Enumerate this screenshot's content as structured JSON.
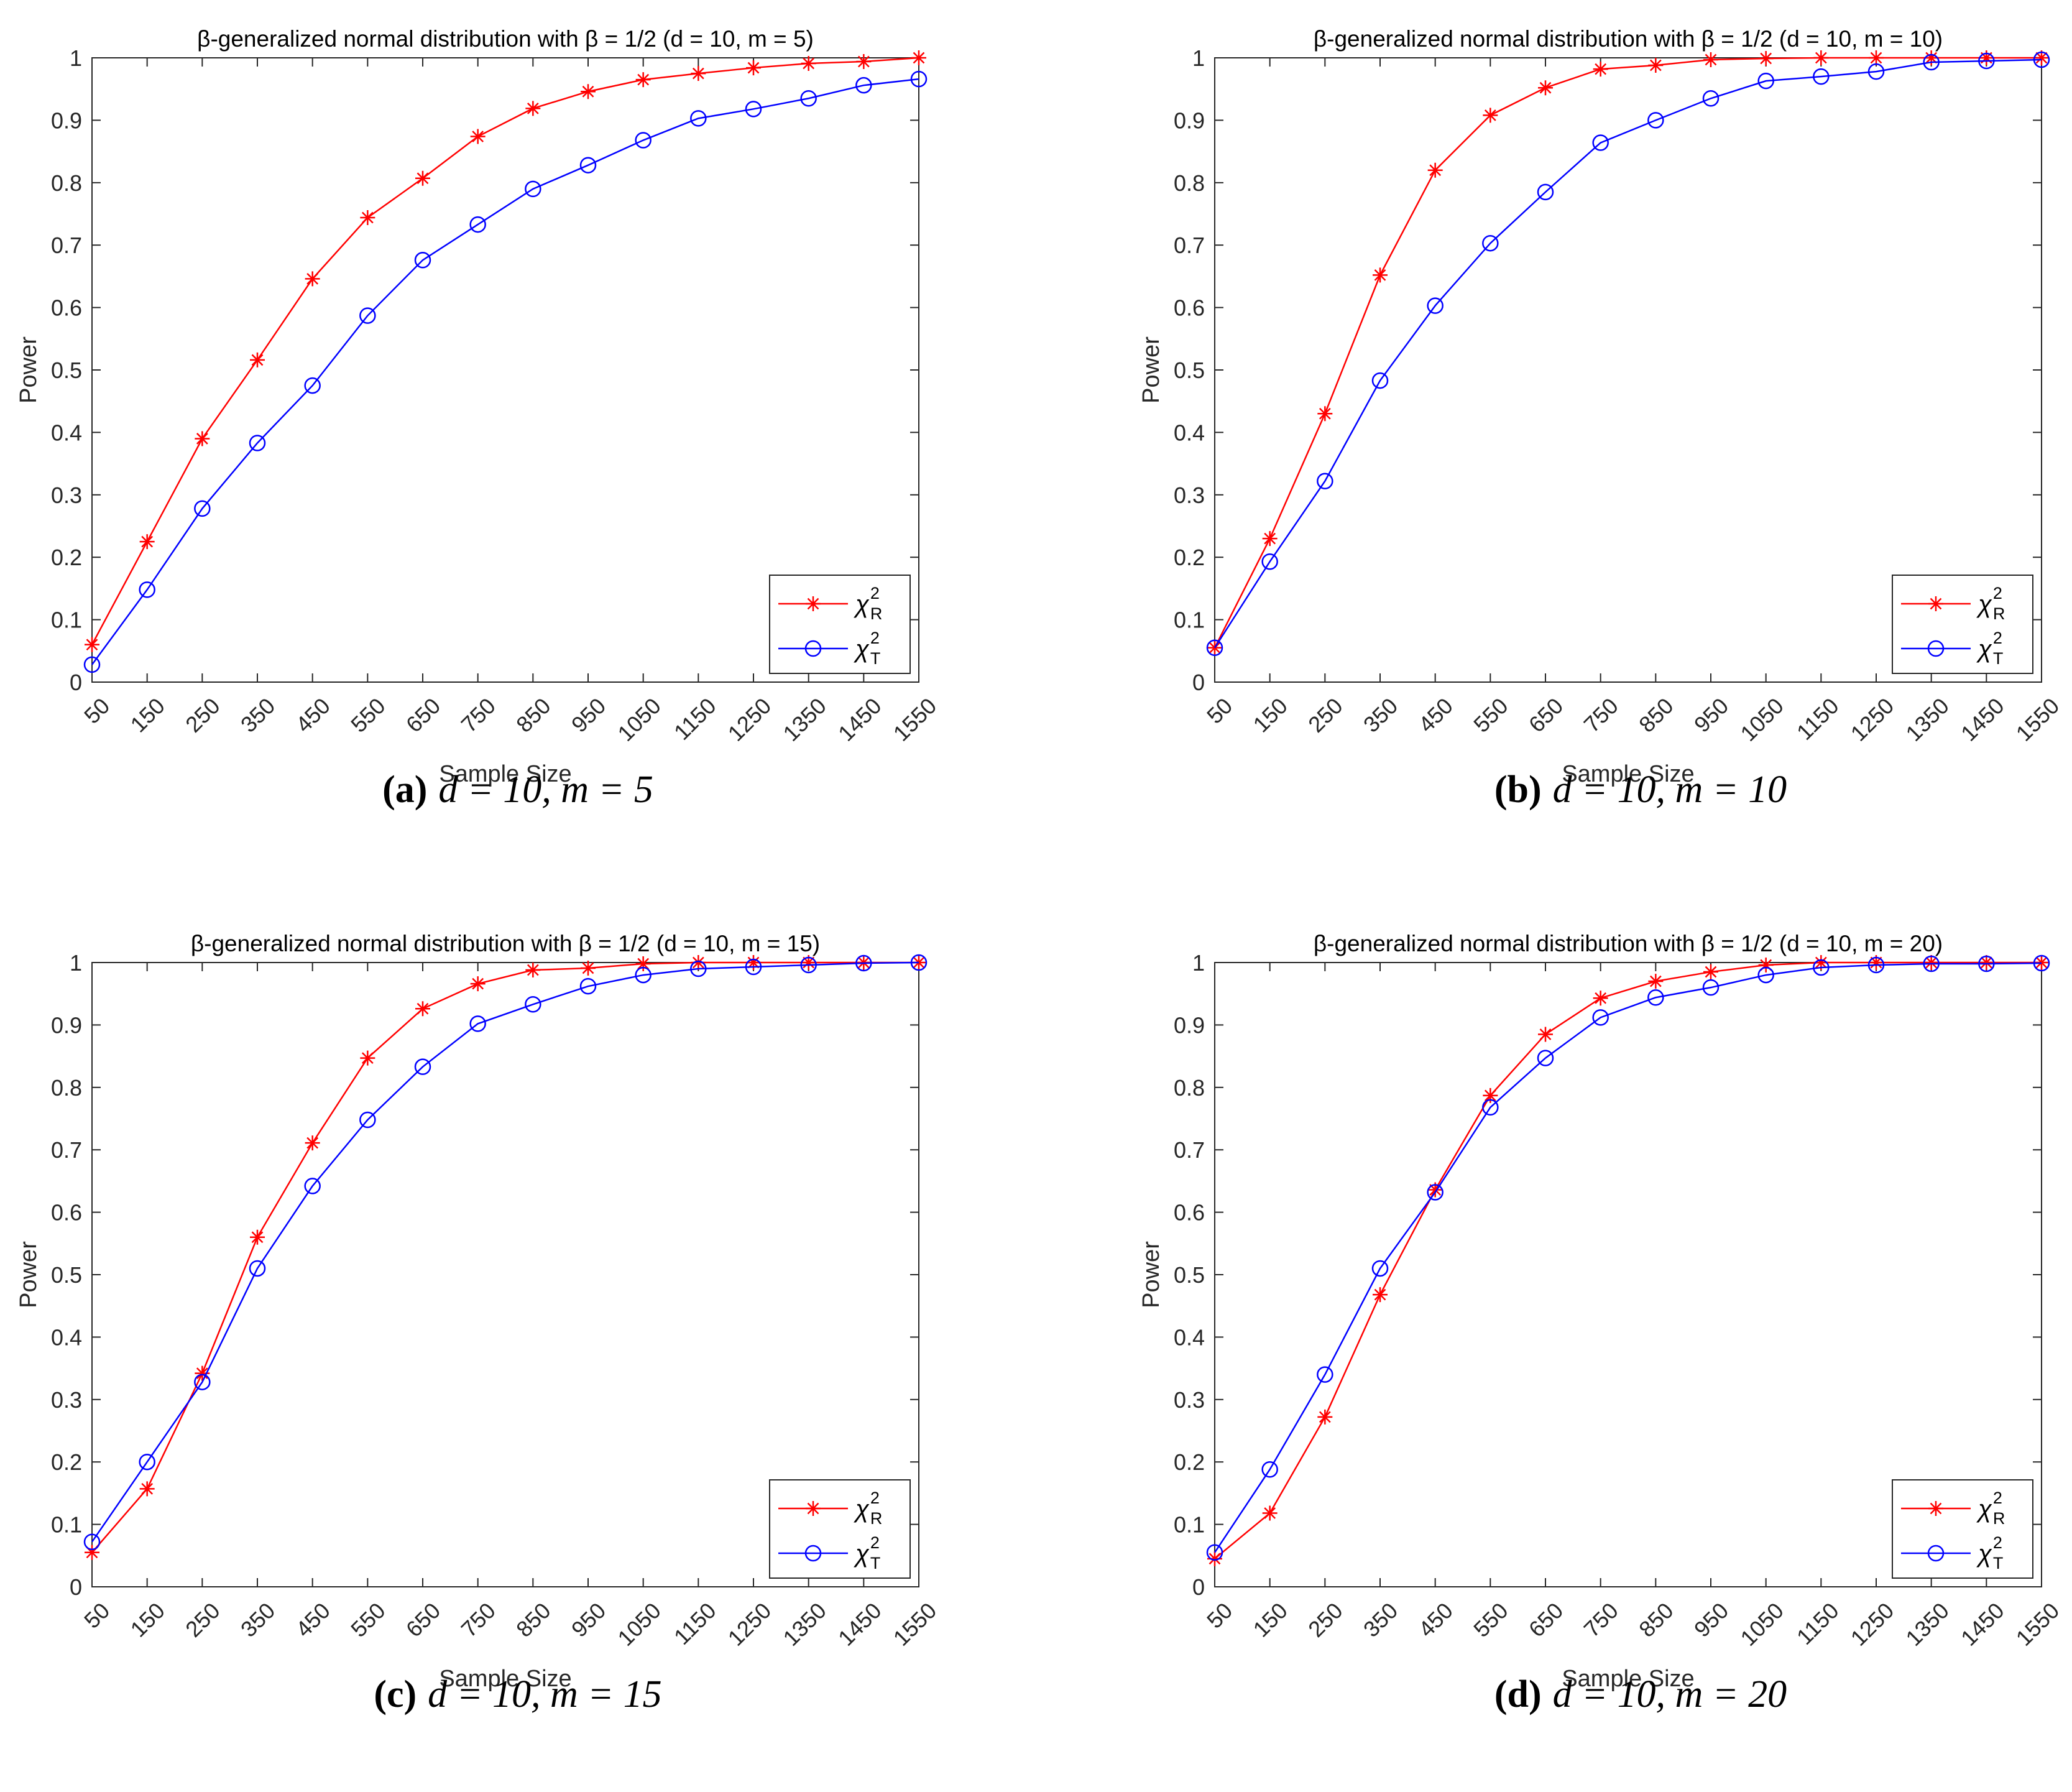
{
  "figure": {
    "panels": [
      {
        "id": "a",
        "caption_label": "(a)",
        "caption_text": "d = 10, m = 5",
        "chart_data": {
          "type": "line",
          "title": "β-generalized normal distribution with β = 1/2 (d = 10, m = 5)",
          "xlabel": "Sample Size",
          "ylabel": "Power",
          "x": [
            50,
            150,
            250,
            350,
            450,
            550,
            650,
            750,
            850,
            950,
            1050,
            1150,
            1250,
            1350,
            1450,
            1550
          ],
          "xticks": [
            "50",
            "150",
            "250",
            "350",
            "450",
            "550",
            "650",
            "750",
            "850",
            "950",
            "1050",
            "1150",
            "1250",
            "1350",
            "1450",
            "1550"
          ],
          "yticks": [
            "0",
            "0.1",
            "0.2",
            "0.3",
            "0.4",
            "0.5",
            "0.6",
            "0.7",
            "0.8",
            "0.9",
            "1"
          ],
          "xlim": [
            50,
            1550
          ],
          "ylim": [
            0,
            1
          ],
          "grid": false,
          "legend_position": "bottom-right",
          "series": [
            {
              "name": "χ²_R",
              "label_main": "χ",
              "label_sup": "2",
              "label_sub": "R",
              "color": "#ff0000",
              "marker": "asterisk",
              "values": [
                0.06,
                0.225,
                0.39,
                0.516,
                0.646,
                0.744,
                0.807,
                0.874,
                0.919,
                0.946,
                0.965,
                0.975,
                0.984,
                0.991,
                0.994,
                1.0
              ]
            },
            {
              "name": "χ²_T",
              "label_main": "χ",
              "label_sup": "2",
              "label_sub": "T",
              "color": "#0000ff",
              "marker": "circle",
              "values": [
                0.028,
                0.148,
                0.278,
                0.383,
                0.475,
                0.587,
                0.676,
                0.733,
                0.79,
                0.828,
                0.868,
                0.903,
                0.918,
                0.935,
                0.956,
                0.966
              ]
            }
          ]
        }
      },
      {
        "id": "b",
        "caption_label": "(b)",
        "caption_text": "d = 10, m = 10",
        "chart_data": {
          "type": "line",
          "title": "β-generalized normal distribution with β = 1/2 (d = 10, m = 10)",
          "xlabel": "Sample Size",
          "ylabel": "Power",
          "x": [
            50,
            150,
            250,
            350,
            450,
            550,
            650,
            750,
            850,
            950,
            1050,
            1150,
            1250,
            1350,
            1450,
            1550
          ],
          "xticks": [
            "50",
            "150",
            "250",
            "350",
            "450",
            "550",
            "650",
            "750",
            "850",
            "950",
            "1050",
            "1150",
            "1250",
            "1350",
            "1450",
            "1550"
          ],
          "yticks": [
            "0",
            "0.1",
            "0.2",
            "0.3",
            "0.4",
            "0.5",
            "0.6",
            "0.7",
            "0.8",
            "0.9",
            "1"
          ],
          "xlim": [
            50,
            1550
          ],
          "ylim": [
            0,
            1
          ],
          "grid": false,
          "legend_position": "bottom-right",
          "series": [
            {
              "name": "χ²_R",
              "label_main": "χ",
              "label_sup": "2",
              "label_sub": "R",
              "color": "#ff0000",
              "marker": "asterisk",
              "values": [
                0.055,
                0.23,
                0.43,
                0.652,
                0.82,
                0.908,
                0.952,
                0.982,
                0.988,
                0.997,
                0.999,
                1.0,
                1.0,
                1.0,
                1.0,
                1.0
              ]
            },
            {
              "name": "χ²_T",
              "label_main": "χ",
              "label_sup": "2",
              "label_sub": "T",
              "color": "#0000ff",
              "marker": "circle",
              "values": [
                0.055,
                0.193,
                0.322,
                0.483,
                0.603,
                0.703,
                0.785,
                0.864,
                0.9,
                0.935,
                0.963,
                0.97,
                0.978,
                0.993,
                0.995,
                0.997
              ]
            }
          ]
        }
      },
      {
        "id": "c",
        "caption_label": "(c)",
        "caption_text": "d = 10, m = 15",
        "chart_data": {
          "type": "line",
          "title": "β-generalized normal distribution with β = 1/2 (d = 10, m = 15)",
          "xlabel": "Sample Size",
          "ylabel": "Power",
          "x": [
            50,
            150,
            250,
            350,
            450,
            550,
            650,
            750,
            850,
            950,
            1050,
            1150,
            1250,
            1350,
            1450,
            1550
          ],
          "xticks": [
            "50",
            "150",
            "250",
            "350",
            "450",
            "550",
            "650",
            "750",
            "850",
            "950",
            "1050",
            "1150",
            "1250",
            "1350",
            "1450",
            "1550"
          ],
          "yticks": [
            "0",
            "0.1",
            "0.2",
            "0.3",
            "0.4",
            "0.5",
            "0.6",
            "0.7",
            "0.8",
            "0.9",
            "1"
          ],
          "xlim": [
            50,
            1550
          ],
          "ylim": [
            0,
            1
          ],
          "grid": false,
          "legend_position": "bottom-right",
          "series": [
            {
              "name": "χ²_R",
              "label_main": "χ",
              "label_sup": "2",
              "label_sub": "R",
              "color": "#ff0000",
              "marker": "asterisk",
              "values": [
                0.055,
                0.157,
                0.342,
                0.56,
                0.711,
                0.847,
                0.926,
                0.966,
                0.988,
                0.991,
                0.998,
                1.0,
                1.0,
                1.0,
                1.0,
                1.0
              ]
            },
            {
              "name": "χ²_T",
              "label_main": "χ",
              "label_sup": "2",
              "label_sub": "T",
              "color": "#0000ff",
              "marker": "circle",
              "values": [
                0.072,
                0.2,
                0.328,
                0.51,
                0.642,
                0.748,
                0.833,
                0.902,
                0.933,
                0.962,
                0.98,
                0.99,
                0.993,
                0.996,
                0.999,
                1.0
              ]
            }
          ]
        }
      },
      {
        "id": "d",
        "caption_label": "(d)",
        "caption_text": "d = 10, m = 20",
        "chart_data": {
          "type": "line",
          "title": "β-generalized normal distribution with β = 1/2 (d = 10, m = 20)",
          "xlabel": "Sample Size",
          "ylabel": "Power",
          "x": [
            50,
            150,
            250,
            350,
            450,
            550,
            650,
            750,
            850,
            950,
            1050,
            1150,
            1250,
            1350,
            1450,
            1550
          ],
          "xticks": [
            "50",
            "150",
            "250",
            "350",
            "450",
            "550",
            "650",
            "750",
            "850",
            "950",
            "1050",
            "1150",
            "1250",
            "1350",
            "1450",
            "1550"
          ],
          "yticks": [
            "0",
            "0.1",
            "0.2",
            "0.3",
            "0.4",
            "0.5",
            "0.6",
            "0.7",
            "0.8",
            "0.9",
            "1"
          ],
          "xlim": [
            50,
            1550
          ],
          "ylim": [
            0,
            1
          ],
          "grid": false,
          "legend_position": "bottom-right",
          "series": [
            {
              "name": "χ²_R",
              "label_main": "χ",
              "label_sup": "2",
              "label_sub": "R",
              "color": "#ff0000",
              "marker": "asterisk",
              "values": [
                0.045,
                0.118,
                0.272,
                0.468,
                0.636,
                0.787,
                0.885,
                0.943,
                0.97,
                0.985,
                0.996,
                1.0,
                1.0,
                1.0,
                1.0,
                1.0
              ]
            },
            {
              "name": "χ²_T",
              "label_main": "χ",
              "label_sup": "2",
              "label_sub": "T",
              "color": "#0000ff",
              "marker": "circle",
              "values": [
                0.055,
                0.188,
                0.34,
                0.51,
                0.632,
                0.768,
                0.847,
                0.912,
                0.944,
                0.96,
                0.98,
                0.992,
                0.996,
                0.998,
                0.998,
                0.999
              ]
            }
          ]
        }
      }
    ]
  }
}
